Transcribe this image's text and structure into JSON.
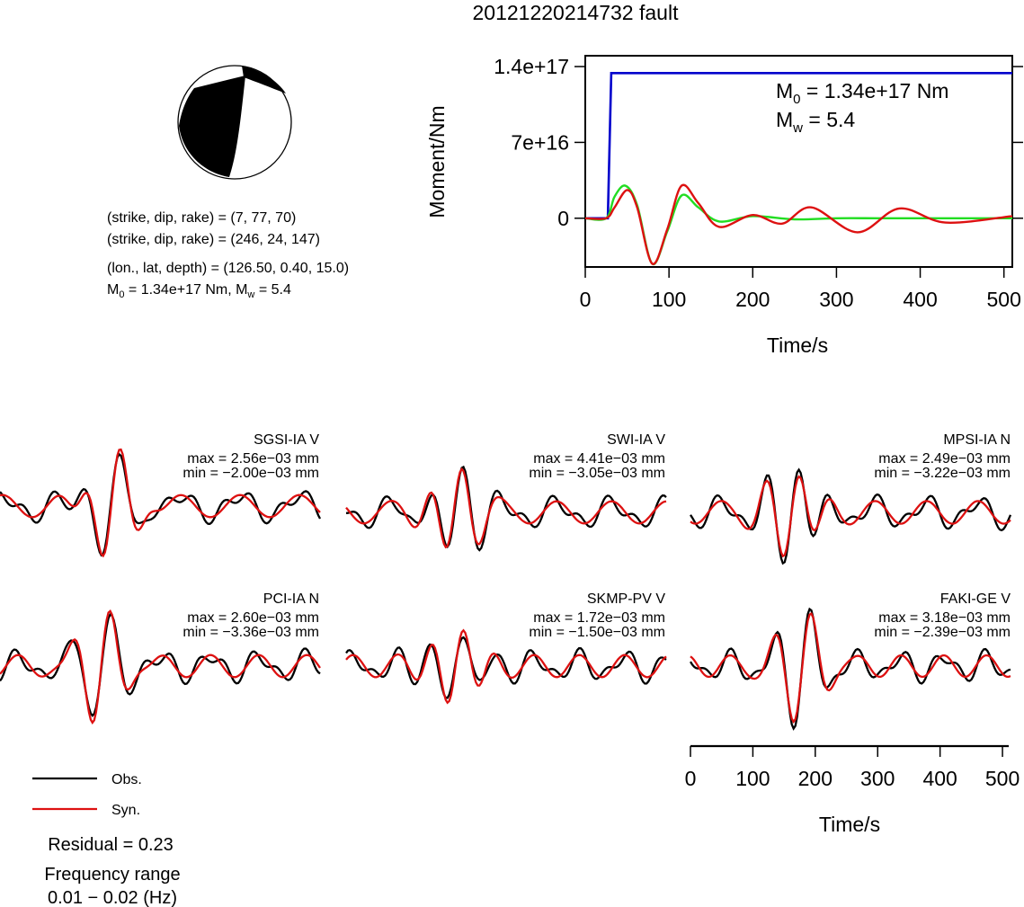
{
  "title": "20121220214732 fault",
  "mechanism": {
    "plane1": "(strike, dip, rake) = (7, 77, 70)",
    "plane2": "(strike, dip, rake) = (246, 24, 147)",
    "location": "(lon., lat, depth) = (126.50, 0.40, 15.0)",
    "moment_prefix": "M",
    "moment_sub": "0",
    "moment_mid": " = 1.34e+17 Nm, M",
    "mw_sub": "w",
    "mw_tail": " = 5.4"
  },
  "moment_plot": {
    "ylabel": "Moment/Nm",
    "xlabel": "Time/s",
    "yticks": [
      "1.4e+17",
      "7e+16",
      "0"
    ],
    "xticks": [
      "0",
      "100",
      "200",
      "300",
      "400",
      "500"
    ],
    "annot_m0_head": "M",
    "annot_m0_sub": "0",
    "annot_m0_tail": " = 1.34e+17 Nm",
    "annot_mw_head": "M",
    "annot_mw_sub": "w",
    "annot_mw_tail": " = 5.4",
    "colors": {
      "moment": "#0000cc",
      "rate_a": "#22dd22",
      "rate_b": "#dd1111"
    }
  },
  "chart_data": [
    {
      "type": "line",
      "title": "",
      "xlabel": "Time/s",
      "ylabel": "Moment/Nm",
      "xlim": [
        0,
        510
      ],
      "ylim": [
        -4.5e+16,
        1.5e+17
      ],
      "series": [
        {
          "x": [
            0,
            27,
            31,
            510
          ],
          "values": [
            0,
            0,
            1.34e+17,
            1.34e+17
          ]
        },
        {
          "x": [
            0,
            25,
            35,
            48,
            62,
            80,
            98,
            115,
            135,
            160,
            200,
            250,
            300,
            350,
            400,
            450,
            510
          ],
          "values": [
            0,
            0,
            2e+16,
            3e+16,
            1.2e+16,
            -4.2e+16,
            -1.2e+16,
            2.1e+16,
            1e+16,
            -3000000000000000.0,
            2000000000000000.0,
            -1000000000000000.0,
            0,
            0,
            0,
            0,
            0
          ]
        },
        {
          "x": [
            0,
            25,
            35,
            50,
            62,
            80,
            98,
            115,
            135,
            160,
            200,
            235,
            270,
            325,
            375,
            430,
            510
          ],
          "values": [
            0,
            0,
            1e+16,
            2.6e+16,
            1e+16,
            -4.2e+16,
            -1e+16,
            3e+16,
            1.4e+16,
            -8000000000000000.0,
            3000000000000000.0,
            -5000000000000000.0,
            1e+16,
            -1.3e+16,
            9000000000000000.0,
            -4000000000000000.0,
            2000000000000000.0
          ]
        }
      ]
    },
    {
      "type": "line",
      "title": "",
      "xlabel": "Time/s",
      "xlim": [
        0,
        510
      ],
      "xticks": [
        0,
        100,
        200,
        300,
        400,
        500
      ]
    }
  ],
  "stations": [
    {
      "name": "SGSI-IA V",
      "max": "max = 2.56e−03 mm",
      "min": "min = −2.00e−03 mm"
    },
    {
      "name": "SWI-IA V",
      "max": "max = 4.41e−03 mm",
      "min": "min = −3.05e−03 mm"
    },
    {
      "name": "MPSI-IA N",
      "max": "max = 2.49e−03 mm",
      "min": "min = −3.22e−03 mm"
    },
    {
      "name": "PCI-IA N",
      "max": "max = 2.60e−03 mm",
      "min": "min = −3.36e−03 mm"
    },
    {
      "name": "SKMP-PV V",
      "max": "max = 1.72e−03 mm",
      "min": "min = −1.50e−03 mm"
    },
    {
      "name": "FAKI-GE V",
      "max": "max = 3.18e−03 mm",
      "min": "min = −2.39e−03 mm"
    }
  ],
  "waveform_axis": {
    "xlabel": "Time/s",
    "xticks": [
      "0",
      "100",
      "200",
      "300",
      "400",
      "500"
    ]
  },
  "legend": {
    "obs": "Obs.",
    "syn": "Syn.",
    "obs_color": "#000000",
    "syn_color": "#dd1111"
  },
  "residual": "Residual = 0.23",
  "frequency_label": "Frequency range",
  "frequency_value": "0.01 − 0.02 (Hz)"
}
